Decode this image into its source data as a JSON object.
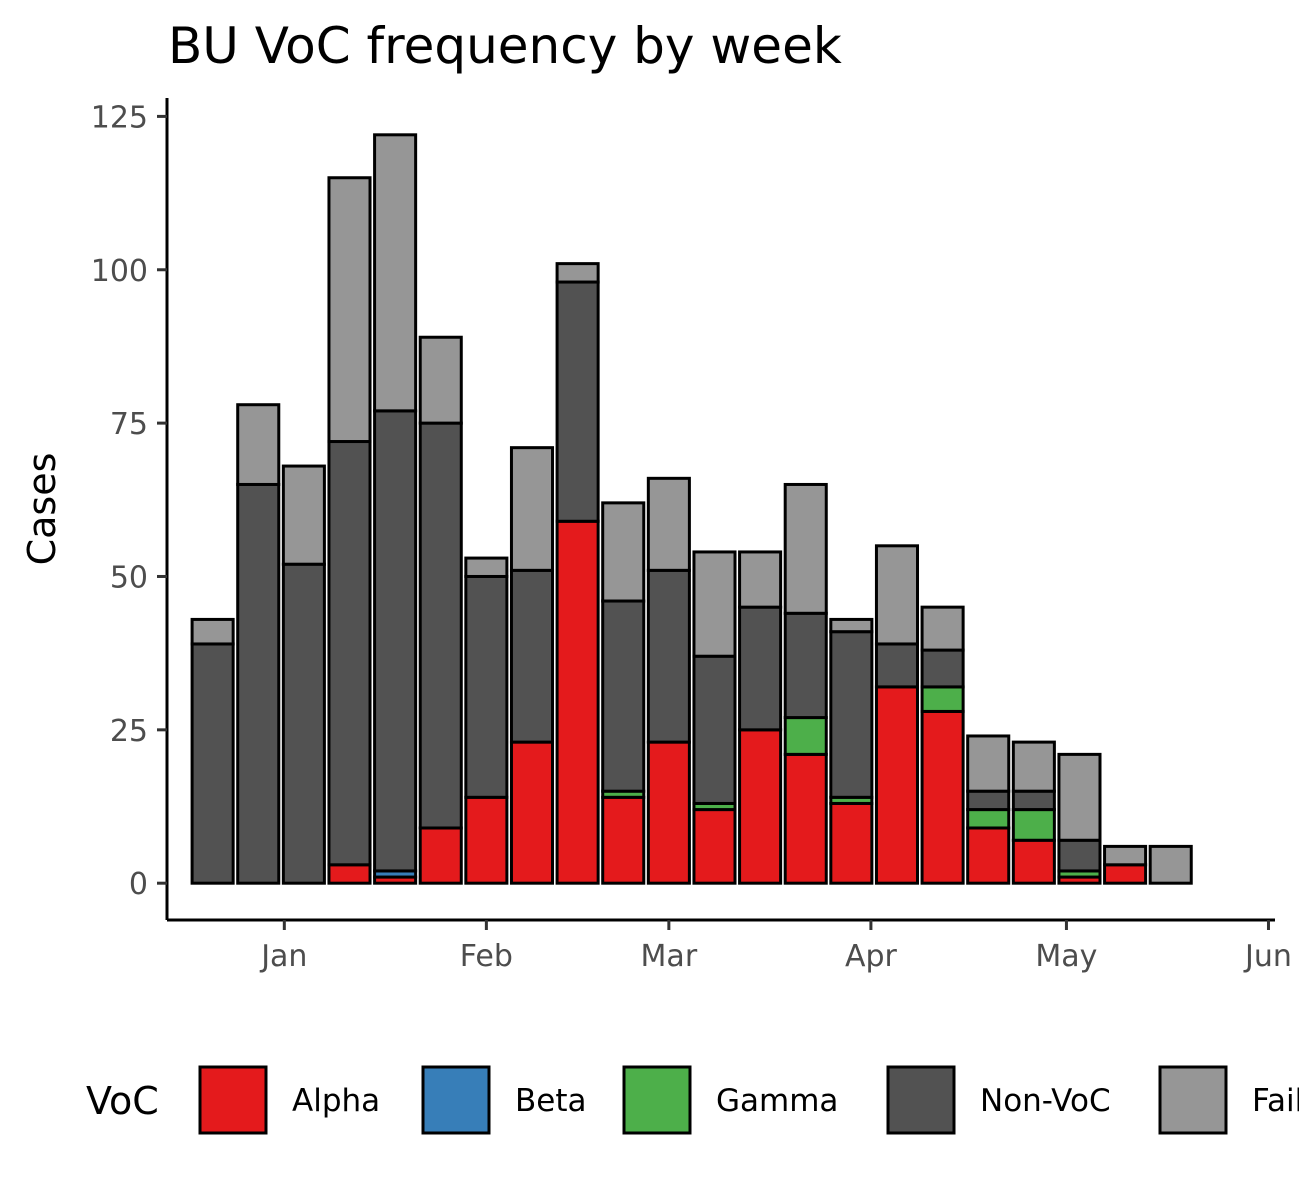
{
  "chart_data": {
    "type": "bar",
    "stacked": true,
    "title": "BU VoC frequency by week",
    "xlabel": "",
    "ylabel": "Cases",
    "x_ticks": [
      "Jan",
      "Feb",
      "Mar",
      "Apr",
      "May",
      "Jun"
    ],
    "y_ticks": [
      0,
      25,
      50,
      75,
      100,
      125
    ],
    "ylim": [
      -6,
      128
    ],
    "xlim": [
      "2020-12-14",
      "2021-06-02"
    ],
    "x": [
      "2020-12-21",
      "2020-12-28",
      "2021-01-04",
      "2021-01-11",
      "2021-01-18",
      "2021-01-25",
      "2021-02-01",
      "2021-02-08",
      "2021-02-15",
      "2021-02-22",
      "2021-03-01",
      "2021-03-08",
      "2021-03-15",
      "2021-03-22",
      "2021-03-29",
      "2021-04-05",
      "2021-04-12",
      "2021-04-19",
      "2021-04-26",
      "2021-05-03",
      "2021-05-10",
      "2021-05-17",
      "2021-05-24"
    ],
    "legend_title": "VoC",
    "legend_position": "bottom",
    "grid": false,
    "series": [
      {
        "name": "Alpha",
        "color": "#e41a1c",
        "values": [
          0,
          0,
          0,
          3,
          1,
          9,
          14,
          23,
          59,
          14,
          23,
          12,
          25,
          21,
          13,
          32,
          28,
          9,
          7,
          1,
          3,
          0,
          0
        ]
      },
      {
        "name": "Beta",
        "color": "#377eb8",
        "values": [
          0,
          0,
          0,
          0,
          1,
          0,
          0,
          0,
          0,
          0,
          0,
          0,
          0,
          0,
          0,
          0,
          0,
          0,
          0,
          0,
          0,
          0,
          0
        ]
      },
      {
        "name": "Gamma",
        "color": "#4daf4a",
        "values": [
          0,
          0,
          0,
          0,
          0,
          0,
          0,
          0,
          0,
          1,
          0,
          1,
          0,
          6,
          1,
          0,
          4,
          3,
          5,
          1,
          0,
          0,
          0
        ]
      },
      {
        "name": "Non-VoC",
        "color": "#525252",
        "values": [
          39,
          65,
          52,
          69,
          75,
          66,
          36,
          28,
          39,
          31,
          28,
          24,
          20,
          17,
          27,
          7,
          6,
          3,
          3,
          5,
          0,
          0,
          0
        ]
      },
      {
        "name": "Failed",
        "color": "#969696",
        "values": [
          4,
          13,
          16,
          43,
          45,
          14,
          3,
          20,
          3,
          16,
          15,
          17,
          9,
          21,
          2,
          16,
          7,
          9,
          8,
          14,
          3,
          6,
          0
        ]
      }
    ]
  }
}
